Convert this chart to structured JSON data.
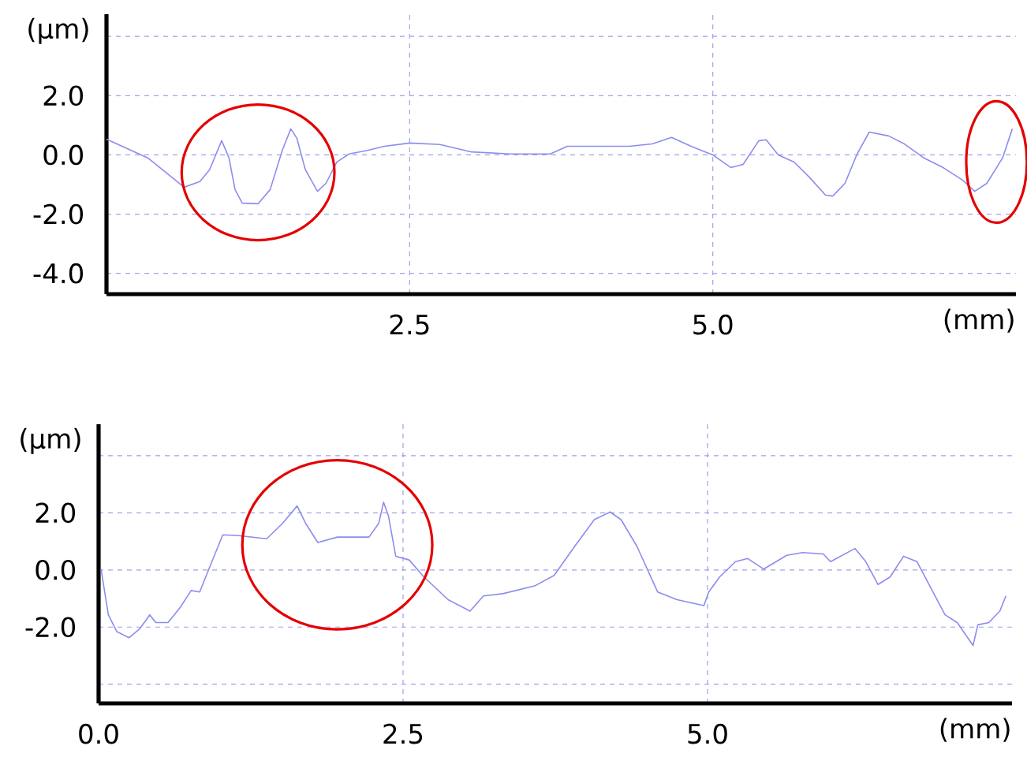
{
  "chart_data": [
    {
      "type": "line",
      "xlabel": "(mm)",
      "ylabel": "(µm)",
      "grid": true,
      "xlim": [
        0,
        7.5
      ],
      "ylim": [
        -4.7,
        4.75
      ],
      "xticks": [
        {
          "value": 2.5,
          "label": "2.5"
        },
        {
          "value": 5.0,
          "label": "5.0"
        }
      ],
      "yticks": [
        {
          "value": 4,
          "label": null
        },
        {
          "value": 2,
          "label": "2.0"
        },
        {
          "value": 0,
          "label": "0.0"
        },
        {
          "value": -2,
          "label": "-2.0"
        },
        {
          "value": -4,
          "label": "-4.0"
        }
      ],
      "x": [
        0,
        0.34,
        0.64,
        0.77,
        0.85,
        0.95,
        1.01,
        1.06,
        1.12,
        1.25,
        1.35,
        1.45,
        1.52,
        1.57,
        1.64,
        1.74,
        1.81,
        1.9,
        2.0,
        2.16,
        2.29,
        2.5,
        2.75,
        3.01,
        3.33,
        3.66,
        3.8,
        4.05,
        4.31,
        4.5,
        4.66,
        4.82,
        5.0,
        5.15,
        5.25,
        5.38,
        5.44,
        5.54,
        5.67,
        5.8,
        5.93,
        5.99,
        6.09,
        6.19,
        6.29,
        6.45,
        6.58,
        6.74,
        6.9,
        7.06,
        7.16,
        7.26,
        7.39,
        7.47
      ],
      "series": [
        {
          "color": "#8c8cf0",
          "values": [
            0.53,
            -0.1,
            -1.09,
            -0.9,
            -0.5,
            0.48,
            -0.1,
            -1.17,
            -1.63,
            -1.65,
            -1.17,
            0.16,
            0.88,
            0.56,
            -0.5,
            -1.23,
            -0.96,
            -0.24,
            0.03,
            0.16,
            0.29,
            0.4,
            0.35,
            0.1,
            0.03,
            0.03,
            0.29,
            0.29,
            0.29,
            0.37,
            0.59,
            0.29,
            0,
            -0.43,
            -0.32,
            0.48,
            0.51,
            0,
            -0.24,
            -0.77,
            -1.36,
            -1.39,
            -0.96,
            0.03,
            0.77,
            0.64,
            0.37,
            -0.1,
            -0.43,
            -0.85,
            -1.23,
            -0.96,
            -0.1,
            0.88
          ]
        }
      ]
    },
    {
      "type": "line",
      "xlabel": "(mm)",
      "ylabel": "(µm)",
      "grid": true,
      "xlim": [
        0,
        7.5
      ],
      "ylim": [
        -4.67,
        5.1
      ],
      "xticks": [
        {
          "value": 0,
          "label": "0.0"
        },
        {
          "value": 2.5,
          "label": "2.5"
        },
        {
          "value": 5.0,
          "label": "5.0"
        }
      ],
      "yticks": [
        {
          "value": 4,
          "label": null
        },
        {
          "value": 2,
          "label": "2.0"
        },
        {
          "value": 0,
          "label": "0.0"
        },
        {
          "value": -2,
          "label": "-2.0"
        },
        {
          "value": -4,
          "label": null
        }
      ],
      "x": [
        0.02,
        0.08,
        0.15,
        0.25,
        0.34,
        0.42,
        0.47,
        0.57,
        0.67,
        0.76,
        0.83,
        0.93,
        1.02,
        1.15,
        1.38,
        1.51,
        1.63,
        1.7,
        1.8,
        1.96,
        2.22,
        2.3,
        2.34,
        2.38,
        2.44,
        2.55,
        2.67,
        2.87,
        3.05,
        3.16,
        3.32,
        3.58,
        3.74,
        3.91,
        4.07,
        4.2,
        4.29,
        4.42,
        4.59,
        4.75,
        4.97,
        5.01,
        5.1,
        5.23,
        5.33,
        5.46,
        5.65,
        5.78,
        5.95,
        6.01,
        6.21,
        6.3,
        6.4,
        6.5,
        6.61,
        6.72,
        6.95,
        7.05,
        7.18,
        7.22,
        7.31,
        7.4,
        7.45
      ],
      "series": [
        {
          "color": "#8c8cf0",
          "values": [
            0.03,
            -1.57,
            -2.16,
            -2.37,
            -2.05,
            -1.57,
            -1.84,
            -1.84,
            -1.31,
            -0.72,
            -0.77,
            0.29,
            1.23,
            1.2,
            1.09,
            1.63,
            2.24,
            1.63,
            0.96,
            1.15,
            1.15,
            1.63,
            2.37,
            1.89,
            0.48,
            0.35,
            -0.24,
            -1.04,
            -1.44,
            -0.91,
            -0.83,
            -0.56,
            -0.19,
            0.83,
            1.76,
            2.03,
            1.76,
            0.83,
            -0.77,
            -1.04,
            -1.25,
            -0.77,
            -0.24,
            0.29,
            0.4,
            0.03,
            0.51,
            0.61,
            0.56,
            0.29,
            0.75,
            0.29,
            -0.51,
            -0.24,
            0.48,
            0.29,
            -1.57,
            -1.84,
            -2.64,
            -1.92,
            -1.84,
            -1.44,
            -0.91
          ]
        }
      ]
    }
  ]
}
